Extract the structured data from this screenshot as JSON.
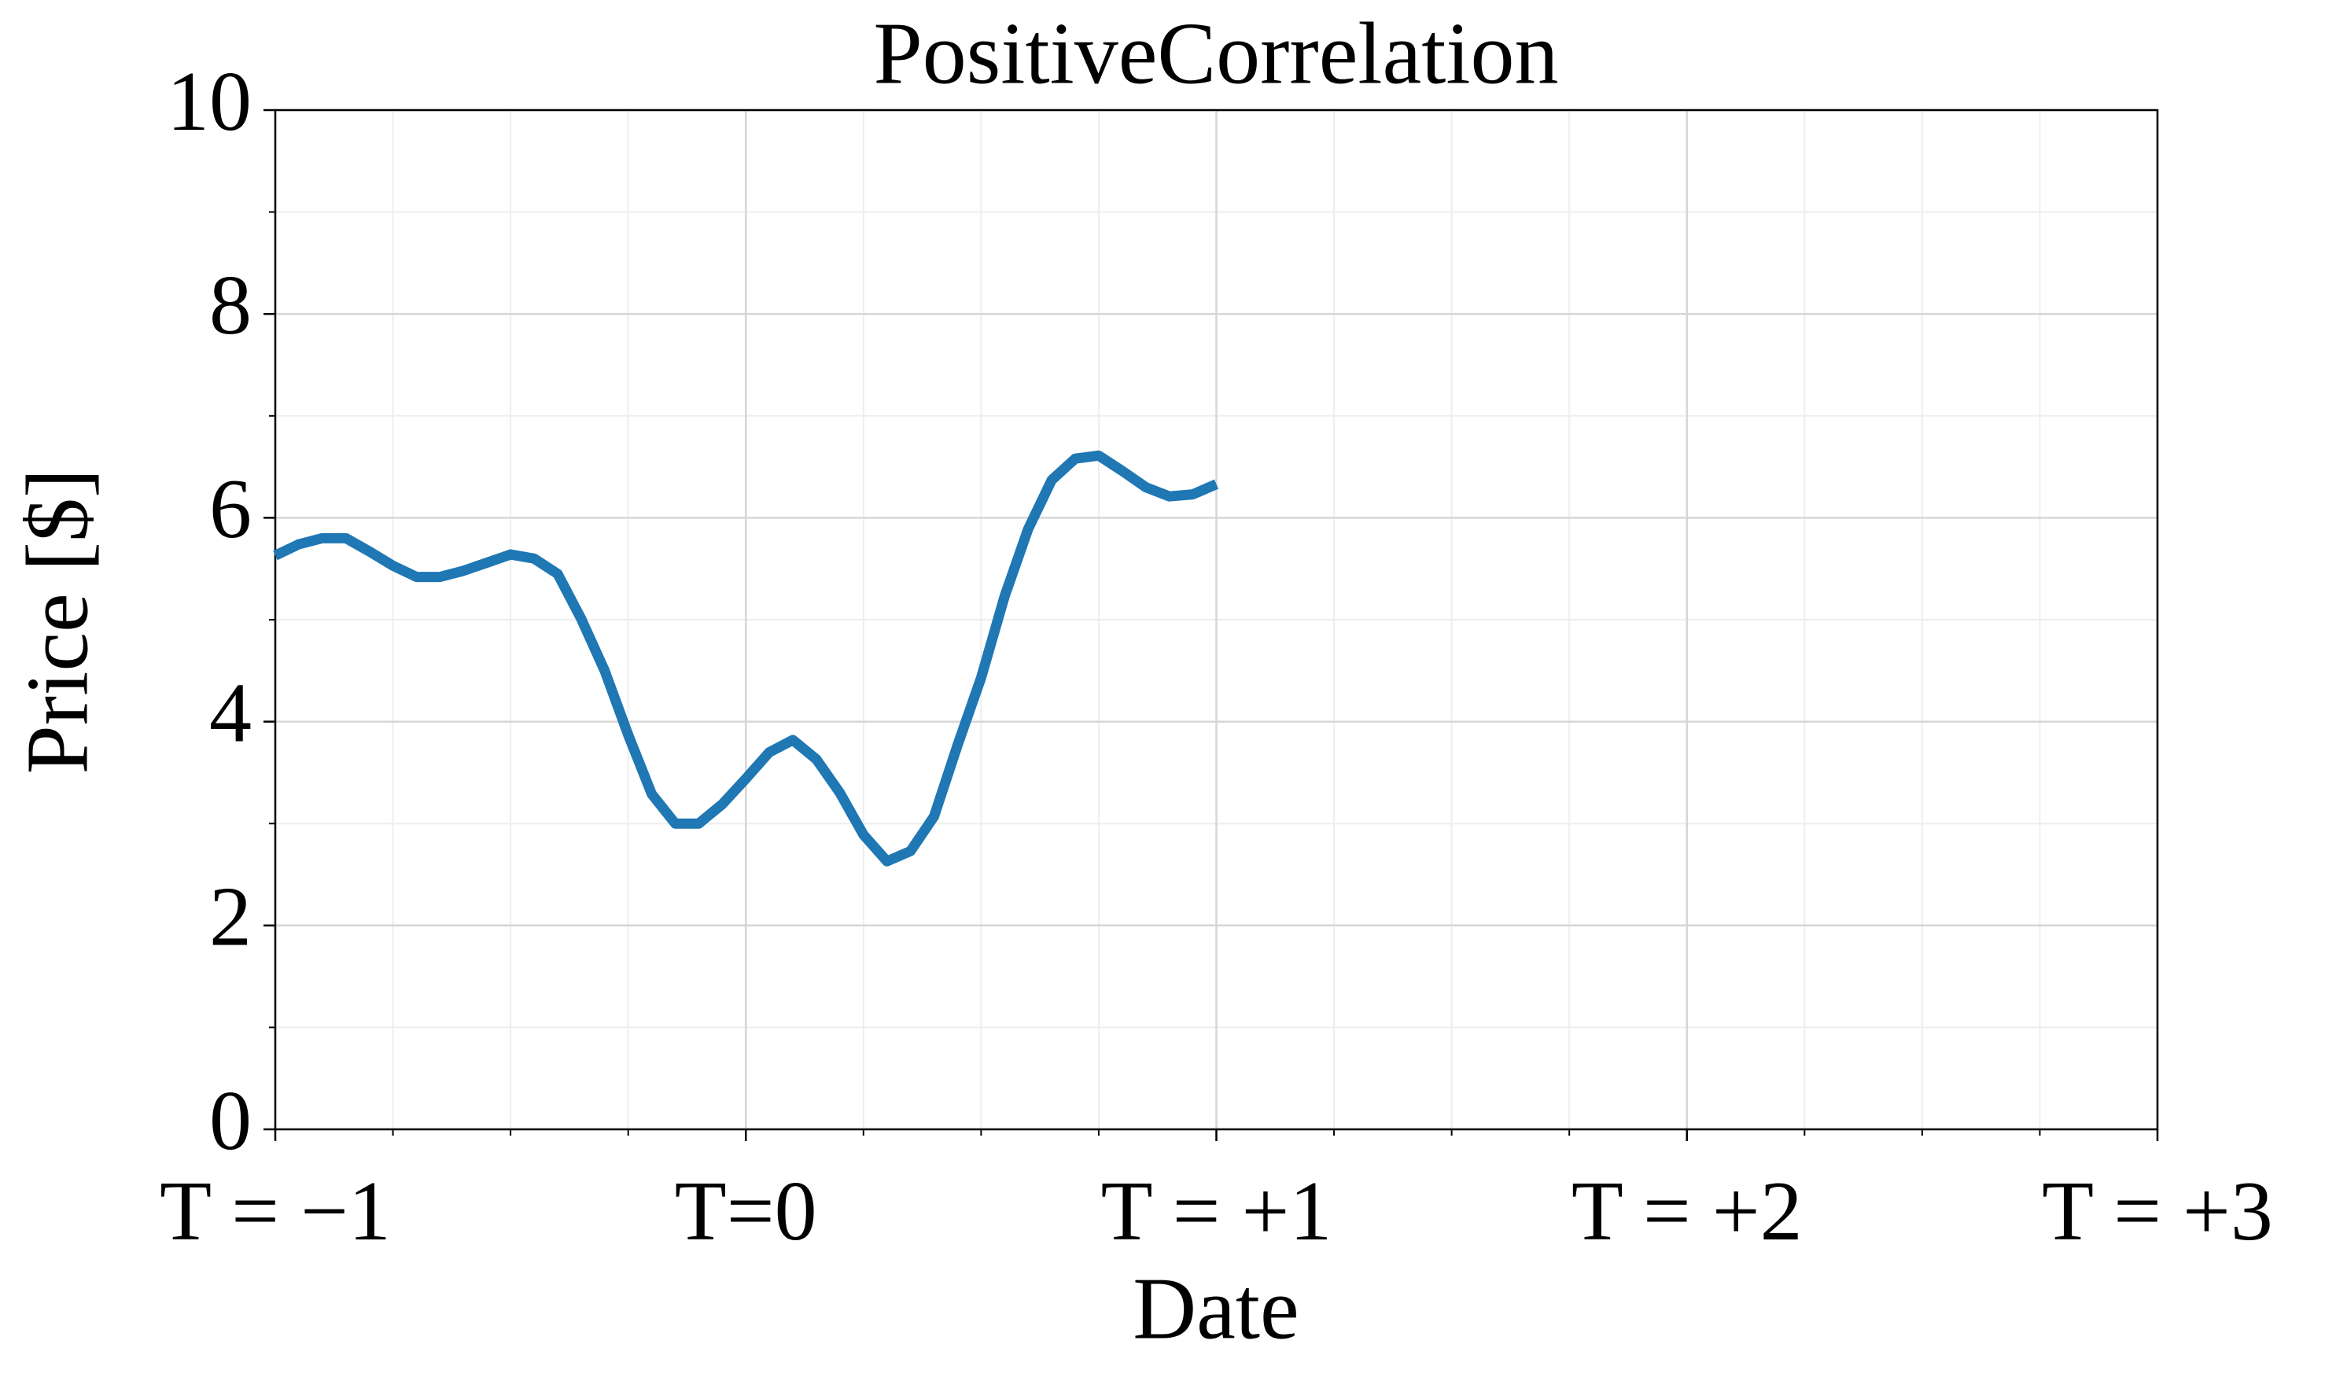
{
  "chart_data": {
    "type": "line",
    "title": "PositiveCorrelation",
    "xlabel": "Date",
    "ylabel": "Price [$]",
    "series": [
      {
        "color": "#1f77b4",
        "x": [
          -1,
          -0.95,
          -0.9,
          -0.85,
          -0.8,
          -0.75,
          -0.7,
          -0.65,
          -0.6,
          -0.55,
          -0.5,
          -0.45,
          -0.4,
          -0.35,
          -0.3,
          -0.25,
          -0.2,
          -0.15,
          -0.1,
          -0.05,
          0,
          0.05,
          0.1,
          0.15,
          0.2,
          0.25,
          0.3,
          0.35,
          0.4,
          0.45,
          0.5,
          0.55,
          0.6,
          0.65,
          0.7,
          0.75,
          0.8,
          0.85,
          0.9,
          0.95,
          1
        ],
        "values": [
          5.63,
          5.74,
          5.8,
          5.8,
          5.67,
          5.53,
          5.42,
          5.42,
          5.48,
          5.56,
          5.64,
          5.6,
          5.45,
          5.01,
          4.5,
          3.87,
          3.29,
          3.0,
          3.0,
          3.19,
          3.44,
          3.7,
          3.82,
          3.63,
          3.3,
          2.89,
          2.63,
          2.73,
          3.07,
          3.77,
          4.43,
          5.23,
          5.89,
          6.37,
          6.58,
          6.61,
          6.46,
          6.3,
          6.21,
          6.23,
          6.33
        ]
      }
    ],
    "xlim": [
      -1,
      3
    ],
    "xticks": [
      {
        "value": -1,
        "label": "T = −1"
      },
      {
        "value": 0,
        "label": "T=0"
      },
      {
        "value": 1,
        "label": "T = +1"
      },
      {
        "value": 2,
        "label": "T = +2"
      },
      {
        "value": 3,
        "label": "T = +3"
      }
    ],
    "ylim": [
      0,
      10
    ],
    "yticks": [
      0,
      2,
      4,
      6,
      8,
      10
    ],
    "grid": true,
    "xminor": 3,
    "yminor": 1
  }
}
